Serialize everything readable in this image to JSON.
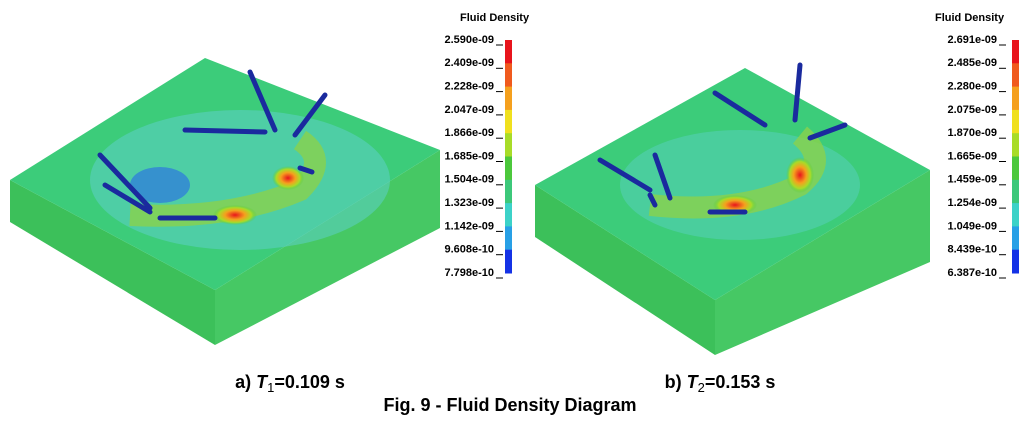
{
  "panels": [
    {
      "colorbar": {
        "title": "Fluid Density",
        "labels": [
          "2.590e-09",
          "2.409e-09",
          "2.228e-09",
          "2.047e-09",
          "1.866e-09",
          "1.685e-09",
          "1.504e-09",
          "1.323e-09",
          "1.142e-09",
          "9.608e-10",
          "7.798e-10"
        ]
      },
      "caption": {
        "prefix": "a)",
        "variable": "T",
        "subscript": "1",
        "rest": "=0.109 s"
      }
    },
    {
      "colorbar": {
        "title": "Fluid Density",
        "labels": [
          "2.691e-09",
          "2.485e-09",
          "2.280e-09",
          "2.075e-09",
          "1.870e-09",
          "1.665e-09",
          "1.459e-09",
          "1.254e-09",
          "1.049e-09",
          "8.439e-10",
          "6.387e-10"
        ]
      },
      "caption": {
        "prefix": "b)",
        "variable": "T",
        "subscript": "2",
        "rest": "=0.153 s"
      }
    }
  ],
  "figure_caption": "Fig. 9 - Fluid Density Diagram"
}
